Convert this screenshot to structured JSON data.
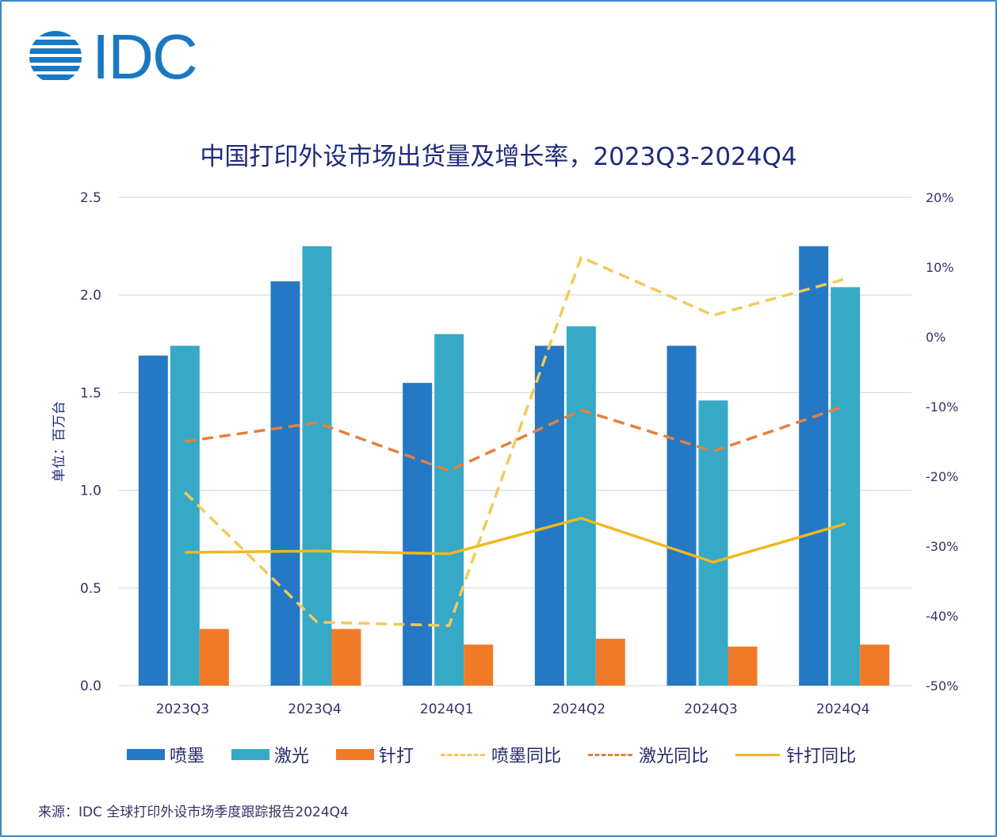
{
  "logo": {
    "text": "IDC"
  },
  "source": "来源：IDC 全球打印外设市场季度跟踪报告2024Q4",
  "chart_data": {
    "type": "bar+line",
    "title": "中国打印外设市场出货量及增长率，2023Q3-2024Q4",
    "ylabel": "单位：百万台",
    "categories": [
      "2023Q3",
      "2023Q4",
      "2024Q1",
      "2024Q2",
      "2024Q3",
      "2024Q4"
    ],
    "ylim": [
      0,
      2.5
    ],
    "yticks": [
      "0.0",
      "0.5",
      "1.0",
      "1.5",
      "2.0",
      "2.5"
    ],
    "y2lim": [
      -50,
      20
    ],
    "y2ticks": [
      "-50%",
      "-40%",
      "-30%",
      "-20%",
      "-10%",
      "0%",
      "10%",
      "20%"
    ],
    "grid": true,
    "legend": "bottom",
    "bar_series": [
      {
        "name": "喷墨",
        "color": "#2478c4",
        "values": [
          1.69,
          2.07,
          1.55,
          1.74,
          1.74,
          2.25
        ]
      },
      {
        "name": "激光",
        "color": "#36a9c6",
        "values": [
          1.74,
          2.25,
          1.8,
          1.84,
          1.46,
          2.04
        ]
      },
      {
        "name": "针打",
        "color": "#f07a28",
        "values": [
          0.29,
          0.29,
          0.21,
          0.24,
          0.2,
          0.21
        ]
      }
    ],
    "line_series": [
      {
        "name": "喷墨同比",
        "color": "#f2ca5a",
        "style": "dashed",
        "axis": "right",
        "values": [
          -22.3,
          -40.9,
          -41.4,
          11.4,
          3.1,
          8.3
        ]
      },
      {
        "name": "激光同比",
        "color": "#e4803e",
        "style": "dashed",
        "axis": "right",
        "values": [
          -15.0,
          -12.3,
          -19.2,
          -10.5,
          -16.4,
          -9.9
        ]
      },
      {
        "name": "针打同比",
        "color": "#f0b820",
        "style": "solid",
        "axis": "right",
        "values": [
          -30.9,
          -30.7,
          -31.1,
          -26.0,
          -32.3,
          -26.8
        ]
      }
    ]
  }
}
